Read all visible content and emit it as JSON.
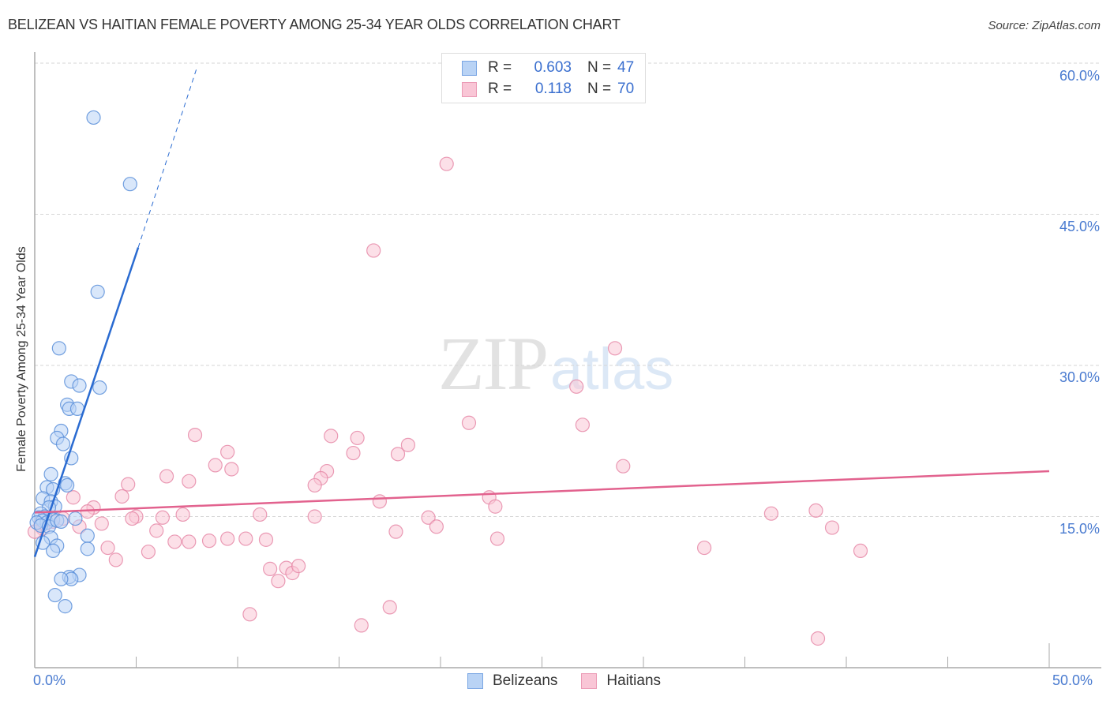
{
  "header": {
    "title": "BELIZEAN VS HAITIAN FEMALE POVERTY AMONG 25-34 YEAR OLDS CORRELATION CHART",
    "source": "Source: ZipAtlas.com"
  },
  "watermark": {
    "zip": "ZIP",
    "atlas": "atlas"
  },
  "legend": {
    "belizeans": {
      "r_label": "R =",
      "r_value": "0.603",
      "n_label": "N =",
      "n_value": "47"
    },
    "haitians": {
      "r_label": "R =",
      "r_value": "0.118",
      "n_label": "N =",
      "n_value": "70"
    }
  },
  "bottom_legend": {
    "belizeans": "Belizeans",
    "haitians": "Haitians"
  },
  "axes": {
    "ylabel": "Female Poverty Among 25-34 Year Olds",
    "yticks": [
      "60.0%",
      "45.0%",
      "30.0%",
      "15.0%"
    ],
    "xticks": [
      "0.0%",
      "50.0%"
    ]
  },
  "colors": {
    "blue_fill": "#b9d3f5",
    "blue_stroke": "#5b8fd9",
    "blue_line": "#2a6bd1",
    "pink_fill": "#f9c6d6",
    "pink_stroke": "#e689a8",
    "pink_line": "#e2628e",
    "tick_text": "#4a7bd0"
  },
  "chart_data": {
    "type": "scatter",
    "title": "BELIZEAN VS HAITIAN FEMALE POVERTY AMONG 25-34 YEAR OLDS CORRELATION CHART",
    "xlabel": "",
    "ylabel": "Female Poverty Among 25-34 Year Olds",
    "xlim": [
      0,
      50
    ],
    "ylim": [
      0,
      60
    ],
    "x_ticks": [
      "0.0%",
      "50.0%"
    ],
    "y_ticks": [
      "15.0%",
      "30.0%",
      "45.0%",
      "60.0%"
    ],
    "grid": "horizontal dashed",
    "legend_position": "top-center and bottom",
    "series": [
      {
        "name": "Belizeans",
        "R": 0.603,
        "N": 47,
        "trend": {
          "x0": 0,
          "y0": 11.0,
          "x1": 5.1,
          "y1": 41.7,
          "dashed_to": [
            8.0,
            59.6
          ]
        },
        "points": [
          [
            2.9,
            54.6
          ],
          [
            4.7,
            48.0
          ],
          [
            3.1,
            37.3
          ],
          [
            1.2,
            31.7
          ],
          [
            1.8,
            28.4
          ],
          [
            2.2,
            28.0
          ],
          [
            3.2,
            27.8
          ],
          [
            1.6,
            26.1
          ],
          [
            1.7,
            25.7
          ],
          [
            2.1,
            25.7
          ],
          [
            1.3,
            23.5
          ],
          [
            1.1,
            22.8
          ],
          [
            1.4,
            22.2
          ],
          [
            1.8,
            20.8
          ],
          [
            0.8,
            19.2
          ],
          [
            1.5,
            18.3
          ],
          [
            0.6,
            17.9
          ],
          [
            1.6,
            18.1
          ],
          [
            0.9,
            17.7
          ],
          [
            0.4,
            16.8
          ],
          [
            0.8,
            16.5
          ],
          [
            1.0,
            16.0
          ],
          [
            0.7,
            15.9
          ],
          [
            0.3,
            15.3
          ],
          [
            0.5,
            15.0
          ],
          [
            0.2,
            14.9
          ],
          [
            0.4,
            14.6
          ],
          [
            0.6,
            14.4
          ],
          [
            0.9,
            14.7
          ],
          [
            0.1,
            14.4
          ],
          [
            0.3,
            14.1
          ],
          [
            0.7,
            14.0
          ],
          [
            1.1,
            14.6
          ],
          [
            2.0,
            14.8
          ],
          [
            1.3,
            14.5
          ],
          [
            2.6,
            13.1
          ],
          [
            0.8,
            12.9
          ],
          [
            0.4,
            12.4
          ],
          [
            1.1,
            12.1
          ],
          [
            2.6,
            11.8
          ],
          [
            0.9,
            11.6
          ],
          [
            2.2,
            9.2
          ],
          [
            1.7,
            9.0
          ],
          [
            1.8,
            8.8
          ],
          [
            1.3,
            8.8
          ],
          [
            1.0,
            7.2
          ],
          [
            1.5,
            6.1
          ]
        ]
      },
      {
        "name": "Haitians",
        "R": 0.118,
        "N": 70,
        "trend": {
          "x0": 0,
          "y0": 15.4,
          "x1": 50,
          "y1": 19.5
        },
        "points": [
          [
            20.3,
            50.0
          ],
          [
            16.7,
            41.4
          ],
          [
            28.6,
            31.7
          ],
          [
            26.7,
            27.9
          ],
          [
            21.4,
            24.3
          ],
          [
            27.0,
            24.1
          ],
          [
            7.9,
            23.1
          ],
          [
            14.6,
            23.0
          ],
          [
            15.9,
            22.8
          ],
          [
            18.4,
            22.1
          ],
          [
            9.5,
            21.4
          ],
          [
            15.7,
            21.3
          ],
          [
            17.9,
            21.2
          ],
          [
            8.9,
            20.1
          ],
          [
            29.0,
            20.0
          ],
          [
            9.7,
            19.7
          ],
          [
            14.4,
            19.5
          ],
          [
            6.5,
            19.0
          ],
          [
            14.1,
            18.8
          ],
          [
            7.6,
            18.5
          ],
          [
            4.6,
            18.2
          ],
          [
            13.8,
            18.1
          ],
          [
            4.3,
            17.0
          ],
          [
            1.9,
            16.9
          ],
          [
            22.4,
            16.9
          ],
          [
            17.0,
            16.5
          ],
          [
            22.7,
            16.0
          ],
          [
            2.9,
            15.9
          ],
          [
            2.6,
            15.5
          ],
          [
            7.3,
            15.2
          ],
          [
            11.1,
            15.2
          ],
          [
            13.8,
            15.0
          ],
          [
            5.0,
            15.0
          ],
          [
            6.3,
            14.9
          ],
          [
            19.4,
            14.9
          ],
          [
            36.3,
            15.3
          ],
          [
            38.5,
            15.6
          ],
          [
            4.8,
            14.8
          ],
          [
            0.9,
            14.5
          ],
          [
            0.3,
            14.3
          ],
          [
            1.4,
            14.8
          ],
          [
            3.3,
            14.3
          ],
          [
            2.2,
            14.0
          ],
          [
            19.8,
            14.0
          ],
          [
            0.4,
            13.8
          ],
          [
            39.3,
            13.9
          ],
          [
            17.8,
            13.5
          ],
          [
            6.0,
            13.6
          ],
          [
            22.8,
            12.8
          ],
          [
            6.9,
            12.5
          ],
          [
            7.6,
            12.5
          ],
          [
            8.6,
            12.6
          ],
          [
            9.5,
            12.8
          ],
          [
            10.4,
            12.8
          ],
          [
            11.4,
            12.7
          ],
          [
            3.6,
            11.9
          ],
          [
            5.6,
            11.5
          ],
          [
            33.0,
            11.9
          ],
          [
            40.7,
            11.6
          ],
          [
            4.0,
            10.7
          ],
          [
            11.6,
            9.8
          ],
          [
            12.4,
            9.9
          ],
          [
            12.7,
            9.4
          ],
          [
            13.0,
            10.1
          ],
          [
            12.0,
            8.6
          ],
          [
            10.6,
            5.3
          ],
          [
            17.5,
            6.0
          ],
          [
            16.1,
            4.2
          ],
          [
            38.6,
            2.9
          ],
          [
            0.0,
            13.5
          ]
        ]
      }
    ]
  }
}
